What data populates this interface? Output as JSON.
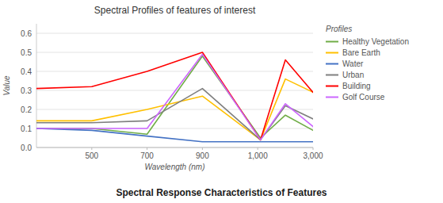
{
  "chart_data": {
    "type": "line",
    "title": "Spectral Profiles of features of interest",
    "subtitle": "Spectral Response Characteristics of Features",
    "xlabel": "Wavelength (nm)",
    "ylabel": "Value",
    "legend_title": "Profiles",
    "x": [
      400,
      500,
      700,
      900,
      1100,
      2000,
      3000
    ],
    "series": [
      {
        "name": "Healthy Vegetation",
        "color": "#70ad47",
        "values": [
          0.1,
          0.1,
          0.07,
          0.48,
          0.05,
          0.17,
          0.09
        ]
      },
      {
        "name": "Bare Earth",
        "color": "#ffc000",
        "values": [
          0.14,
          0.14,
          0.2,
          0.27,
          0.04,
          0.36,
          0.29
        ]
      },
      {
        "name": "Water",
        "color": "#4472c4",
        "values": [
          0.1,
          0.09,
          0.06,
          0.03,
          0.03,
          0.03,
          0.03
        ]
      },
      {
        "name": "Urban",
        "color": "#7f7f7f",
        "values": [
          0.13,
          0.13,
          0.14,
          0.31,
          0.04,
          0.22,
          0.15
        ]
      },
      {
        "name": "Building",
        "color": "#ff0000",
        "values": [
          0.31,
          0.32,
          0.4,
          0.5,
          0.04,
          0.46,
          0.29
        ]
      },
      {
        "name": "Golf Course",
        "color": "#cc66ff",
        "values": [
          0.1,
          0.1,
          0.1,
          0.49,
          0.04,
          0.23,
          0.11
        ]
      }
    ],
    "xlim": [
      400,
      3000
    ],
    "xticks": [
      500,
      700,
      900,
      {
        "value": 1000,
        "label": "1,000"
      },
      {
        "value": 3000,
        "label": "3,000"
      }
    ],
    "ylim": [
      0,
      0.65
    ],
    "yticks": [
      {
        "value": 0,
        "label": "0.0"
      },
      0.1,
      0.2,
      0.3,
      0.4,
      0.5,
      0.6
    ],
    "grid": true,
    "legend": "right"
  }
}
